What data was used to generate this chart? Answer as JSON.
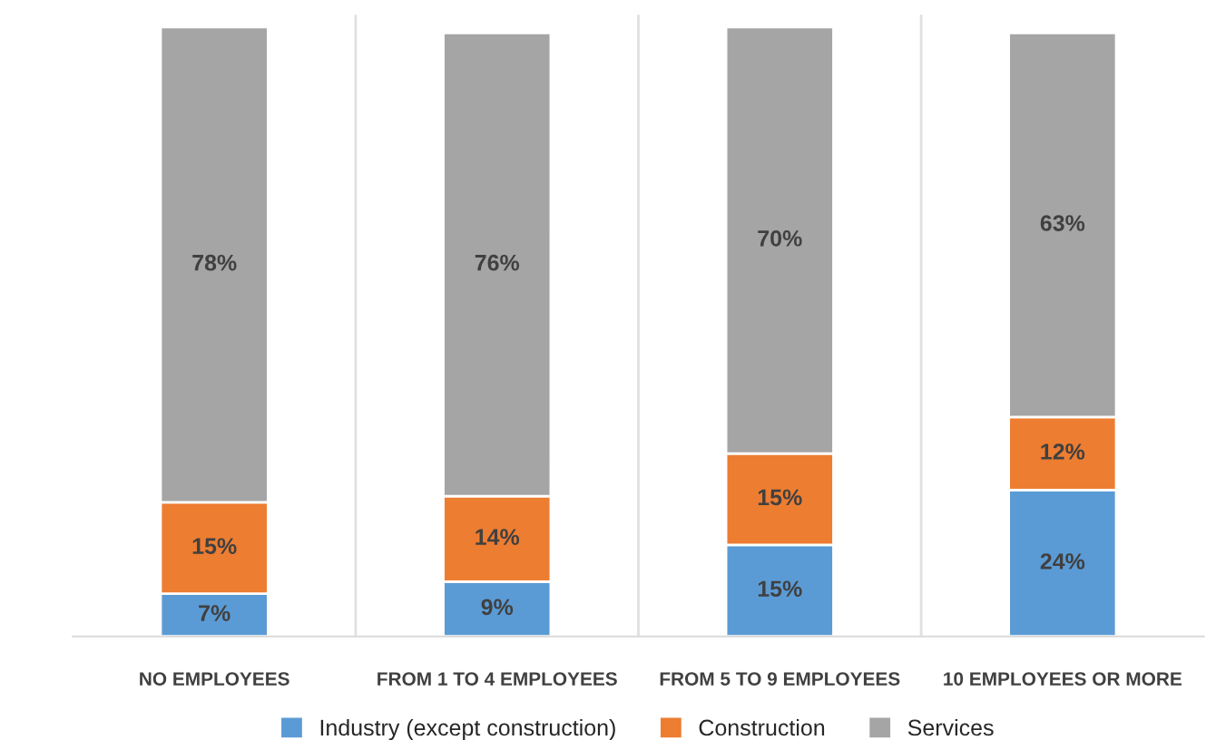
{
  "chart_data": {
    "type": "bar",
    "stacked": true,
    "legend": "bottom",
    "grid": false,
    "categories": [
      "NO EMPLOYEES",
      "FROM 1 TO 4 EMPLOYEES",
      "FROM 5 TO 9 EMPLOYEES",
      "10 EMPLOYEES OR MORE"
    ],
    "series": [
      {
        "name": "Industry (except construction)",
        "color": "#5b9bd5",
        "values": [
          7,
          9,
          15,
          24
        ],
        "value_labels": [
          "7%",
          "9%",
          "15%",
          "24%"
        ]
      },
      {
        "name": "Construction",
        "color": "#ed7d31",
        "values": [
          15,
          14,
          15,
          12
        ],
        "value_labels": [
          "15%",
          "14%",
          "15%",
          "12%"
        ]
      },
      {
        "name": "Services",
        "color": "#a5a5a5",
        "values": [
          78,
          76,
          70,
          63
        ],
        "value_labels": [
          "78%",
          "76%",
          "70%",
          "63%"
        ]
      }
    ]
  }
}
